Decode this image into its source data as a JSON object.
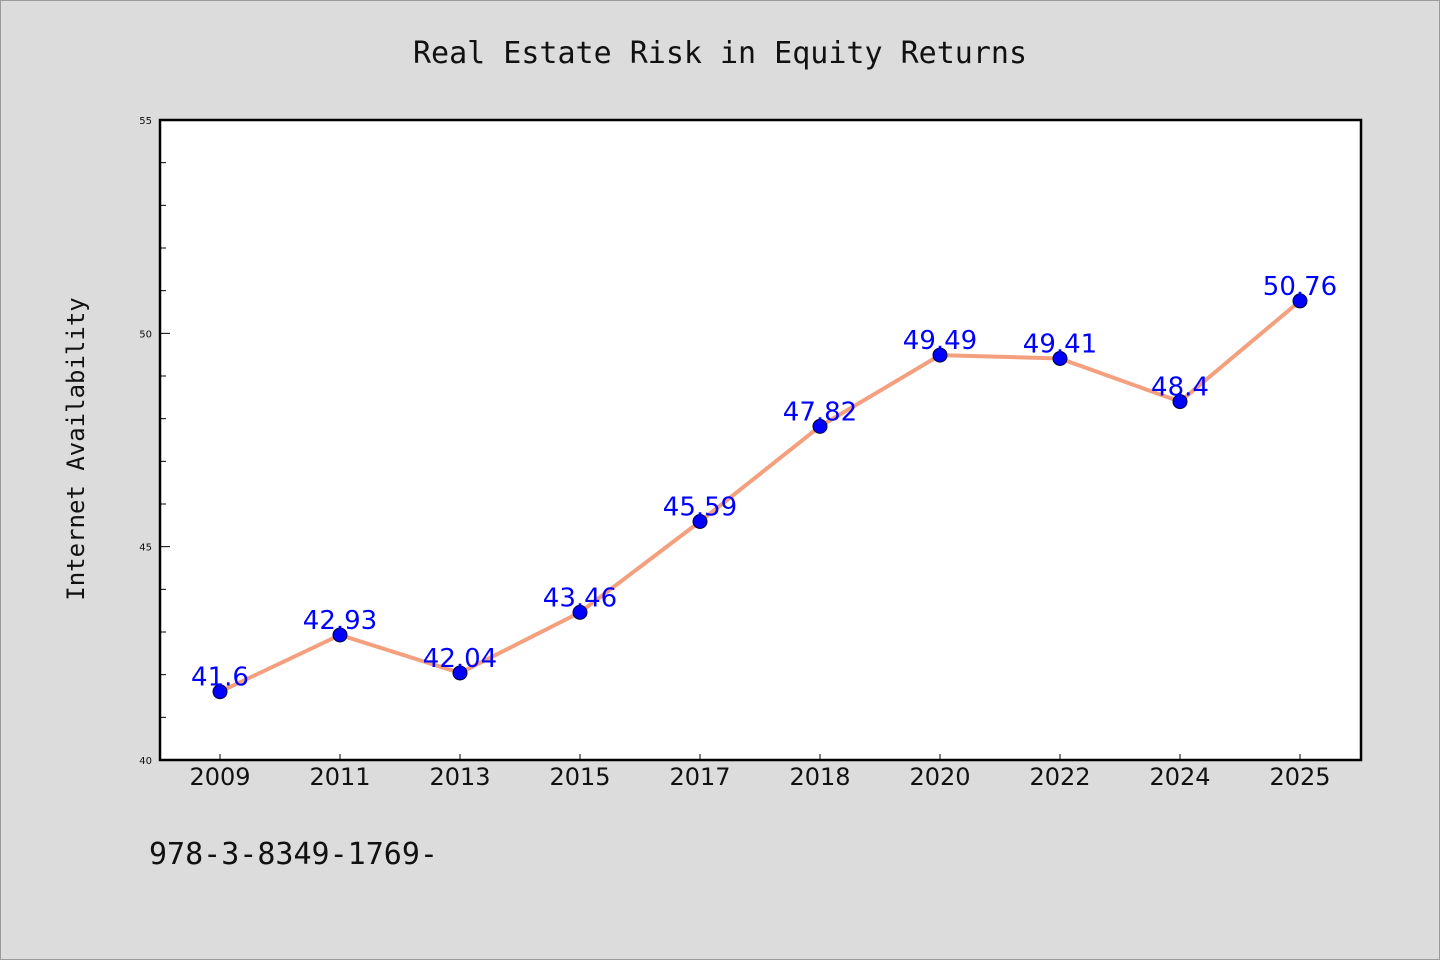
{
  "chart_data": {
    "type": "line",
    "title": "Real Estate Risk in Equity Returns",
    "xlabel": "",
    "ylabel": "Internet Availability",
    "categories": [
      "2009",
      "2011",
      "2013",
      "2015",
      "2017",
      "2018",
      "2020",
      "2022",
      "2024",
      "2025"
    ],
    "series": [
      {
        "values": [
          41.6,
          42.93,
          42.04,
          43.46,
          45.59,
          47.82,
          49.49,
          49.41,
          48.4,
          50.76
        ],
        "data_labels": [
          "41.6",
          "42.93",
          "42.04",
          "43.46",
          "45.59",
          "47.82",
          "49.49",
          "49.41",
          "48.4",
          "50.76"
        ],
        "line_color": "#f4a07f",
        "marker_color": "#0000ff"
      }
    ],
    "ylim": [
      40,
      55
    ],
    "yticks": [
      "40",
      "45",
      "50",
      "55"
    ],
    "grid": false,
    "legend": "none",
    "background": "#ffffff",
    "figure_background": "#dcdcdc"
  },
  "footer": {
    "text": "978-3-8349-1769-"
  }
}
